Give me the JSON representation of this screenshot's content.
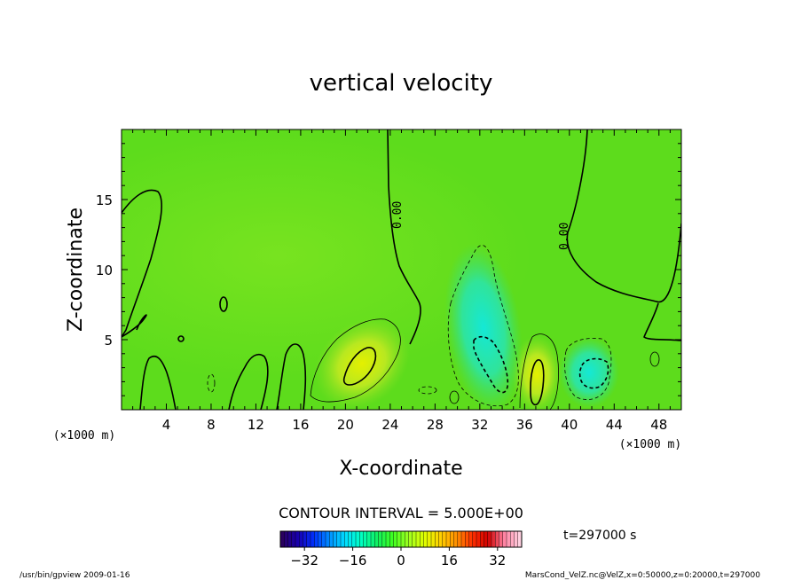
{
  "chart_data": {
    "type": "heatmap",
    "title": "vertical velocity",
    "xlabel": "X-coordinate",
    "ylabel": "Z-coordinate",
    "x_unit_left": "(×1000 m)",
    "x_unit_right": "(×1000 m)",
    "xlim": [
      0,
      50
    ],
    "ylim": [
      0,
      20
    ],
    "x_ticks": [
      4,
      8,
      12,
      16,
      20,
      24,
      28,
      32,
      36,
      40,
      44,
      48
    ],
    "y_ticks": [
      5,
      10,
      15
    ],
    "zero_contour_labels": [
      "0.00",
      "0.00"
    ],
    "contour_interval_label": "CONTOUR INTERVAL = 5.000E+00",
    "colorbar": {
      "range": [
        -40,
        40
      ],
      "ticks": [
        -32,
        -16,
        0,
        16,
        32
      ],
      "palette": [
        "#2a0060",
        "#1800b0",
        "#0030ff",
        "#0090ff",
        "#00e0ff",
        "#00ffc0",
        "#10f060",
        "#40ff20",
        "#a0ff20",
        "#e0ff00",
        "#ffd000",
        "#ff9000",
        "#ff3000",
        "#d00000",
        "#ff80a0",
        "#ffd0e0"
      ]
    },
    "features": [
      {
        "kind": "updraft",
        "x": 21.5,
        "z": 3.3,
        "value": 7
      },
      {
        "kind": "updraft",
        "x": 37.5,
        "z": 2.5,
        "value": 7
      },
      {
        "kind": "downdraft",
        "x": 33.5,
        "z": 3.2,
        "value": -6
      },
      {
        "kind": "downdraft",
        "x": 42.5,
        "z": 2.5,
        "value": -6
      }
    ],
    "time_label": "t=297000 s"
  },
  "footer": {
    "left": "/usr/bin/gpview  2009-01-16",
    "right": "MarsCond_VelZ.nc@VelZ,x=0:50000,z=0:20000,t=297000"
  }
}
